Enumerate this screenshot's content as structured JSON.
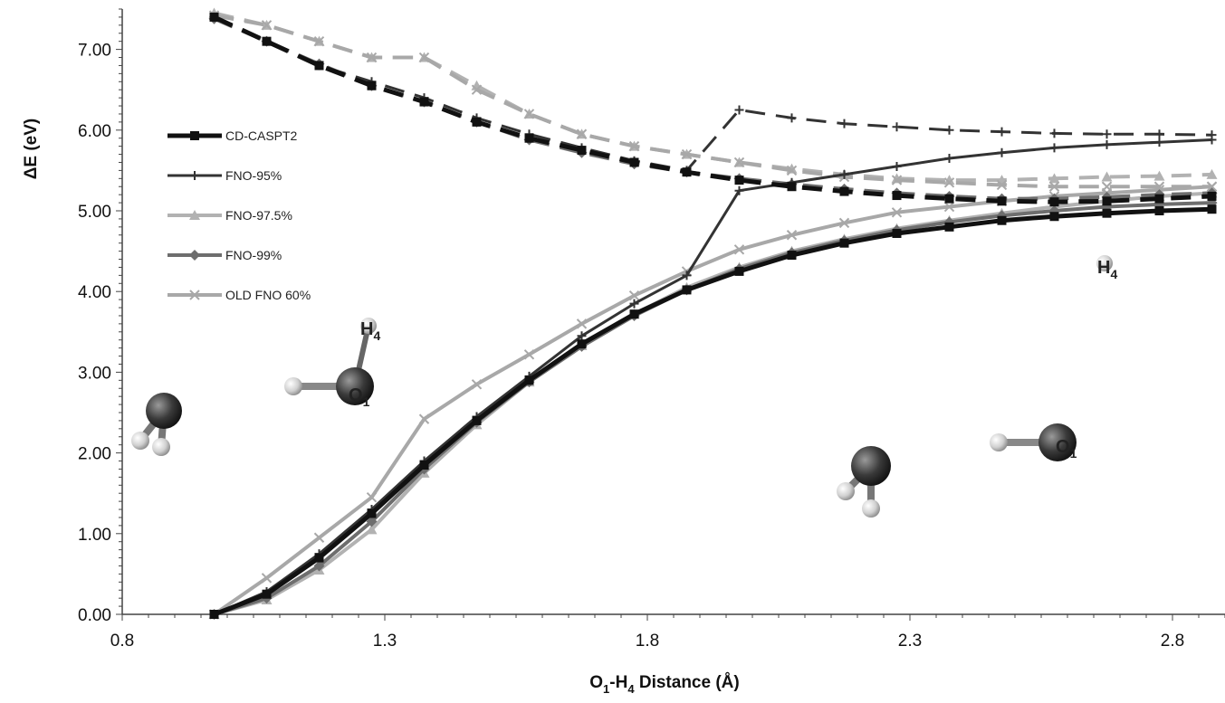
{
  "chart_data": {
    "type": "line",
    "title": "",
    "xlabel": {
      "main": "O",
      "sub1": "1",
      "mid": "-H",
      "sub2": "4",
      "end": " Distance (Å)"
    },
    "ylabel": "ΔE (eV)",
    "xlim": [
      0.8,
      2.9
    ],
    "ylim": [
      0.0,
      7.5
    ],
    "x_ticks": [
      0.8,
      1.3,
      1.8,
      2.3,
      2.8
    ],
    "x_tick_labels": [
      "0.8",
      "1.3",
      "1.8",
      "2.3",
      "2.8"
    ],
    "y_ticks": [
      0,
      1,
      2,
      3,
      4,
      5,
      6,
      7
    ],
    "y_tick_labels": [
      "0.00",
      "1.00",
      "2.00",
      "3.00",
      "4.00",
      "5.00",
      "6.00",
      "7.00"
    ],
    "grid": false,
    "legend_position": "upper-left",
    "x": [
      0.975,
      1.075,
      1.175,
      1.275,
      1.375,
      1.475,
      1.575,
      1.675,
      1.775,
      1.875,
      1.975,
      2.075,
      2.175,
      2.275,
      2.375,
      2.475,
      2.575,
      2.675,
      2.775,
      2.875
    ],
    "series": [
      {
        "name": "CD-CASPT2",
        "color": "#111111",
        "width": 5,
        "marker": "square",
        "ground": [
          0.0,
          0.25,
          0.7,
          1.25,
          1.85,
          2.4,
          2.9,
          3.35,
          3.72,
          4.02,
          4.25,
          4.45,
          4.6,
          4.72,
          4.8,
          4.88,
          4.93,
          4.97,
          5.0,
          5.02
        ],
        "excited": [
          7.4,
          7.1,
          6.8,
          6.55,
          6.35,
          6.1,
          5.9,
          5.75,
          5.6,
          5.48,
          5.38,
          5.3,
          5.24,
          5.19,
          5.15,
          5.12,
          5.11,
          5.12,
          5.15,
          5.18
        ]
      },
      {
        "name": "FNO-95%",
        "color": "#333333",
        "width": 3,
        "marker": "plus",
        "ground": [
          0.0,
          0.28,
          0.75,
          1.3,
          1.9,
          2.45,
          2.95,
          3.45,
          3.85,
          4.2,
          5.25,
          5.35,
          5.45,
          5.55,
          5.65,
          5.72,
          5.78,
          5.82,
          5.85,
          5.88
        ],
        "excited": [
          7.4,
          7.1,
          6.8,
          6.6,
          6.4,
          6.15,
          5.95,
          5.78,
          5.62,
          5.5,
          6.25,
          6.15,
          6.08,
          6.04,
          6.0,
          5.98,
          5.96,
          5.95,
          5.95,
          5.94
        ]
      },
      {
        "name": "FNO-97.5%",
        "color": "#b2b2b2",
        "width": 4,
        "marker": "triangle",
        "ground": [
          0.0,
          0.18,
          0.55,
          1.05,
          1.75,
          2.35,
          2.88,
          3.33,
          3.72,
          4.05,
          4.3,
          4.5,
          4.65,
          4.78,
          4.88,
          4.97,
          5.05,
          5.12,
          5.18,
          5.22
        ],
        "excited": [
          7.45,
          7.3,
          7.1,
          6.9,
          6.9,
          6.55,
          6.2,
          5.95,
          5.8,
          5.7,
          5.6,
          5.52,
          5.45,
          5.4,
          5.38,
          5.38,
          5.4,
          5.42,
          5.43,
          5.45
        ]
      },
      {
        "name": "FNO-99%",
        "color": "#6e6e6e",
        "width": 4,
        "marker": "diamond",
        "ground": [
          0.0,
          0.2,
          0.6,
          1.15,
          1.8,
          2.38,
          2.88,
          3.32,
          3.7,
          4.02,
          4.28,
          4.48,
          4.63,
          4.76,
          4.86,
          4.94,
          5.0,
          5.05,
          5.08,
          5.1
        ],
        "excited": [
          7.38,
          7.1,
          6.82,
          6.55,
          6.35,
          6.1,
          5.88,
          5.72,
          5.58,
          5.48,
          5.4,
          5.33,
          5.27,
          5.22,
          5.18,
          5.15,
          5.15,
          5.17,
          5.2,
          5.22
        ]
      },
      {
        "name": "OLD FNO 60%",
        "color": "#a8a8a8",
        "width": 4,
        "marker": "x",
        "ground": [
          0.0,
          0.45,
          0.95,
          1.45,
          2.42,
          2.85,
          3.22,
          3.6,
          3.95,
          4.25,
          4.52,
          4.7,
          4.85,
          4.98,
          5.05,
          5.12,
          5.18,
          5.22,
          5.26,
          5.3
        ],
        "excited": [
          7.42,
          7.3,
          7.1,
          6.9,
          6.9,
          6.5,
          6.2,
          5.95,
          5.8,
          5.7,
          5.6,
          5.5,
          5.42,
          5.38,
          5.35,
          5.32,
          5.3,
          5.3,
          5.3,
          5.3
        ]
      }
    ],
    "annotations": {
      "h4_label": {
        "main": "H",
        "sub": "4"
      },
      "o1_label": {
        "main": "O",
        "sub": "1"
      }
    }
  }
}
